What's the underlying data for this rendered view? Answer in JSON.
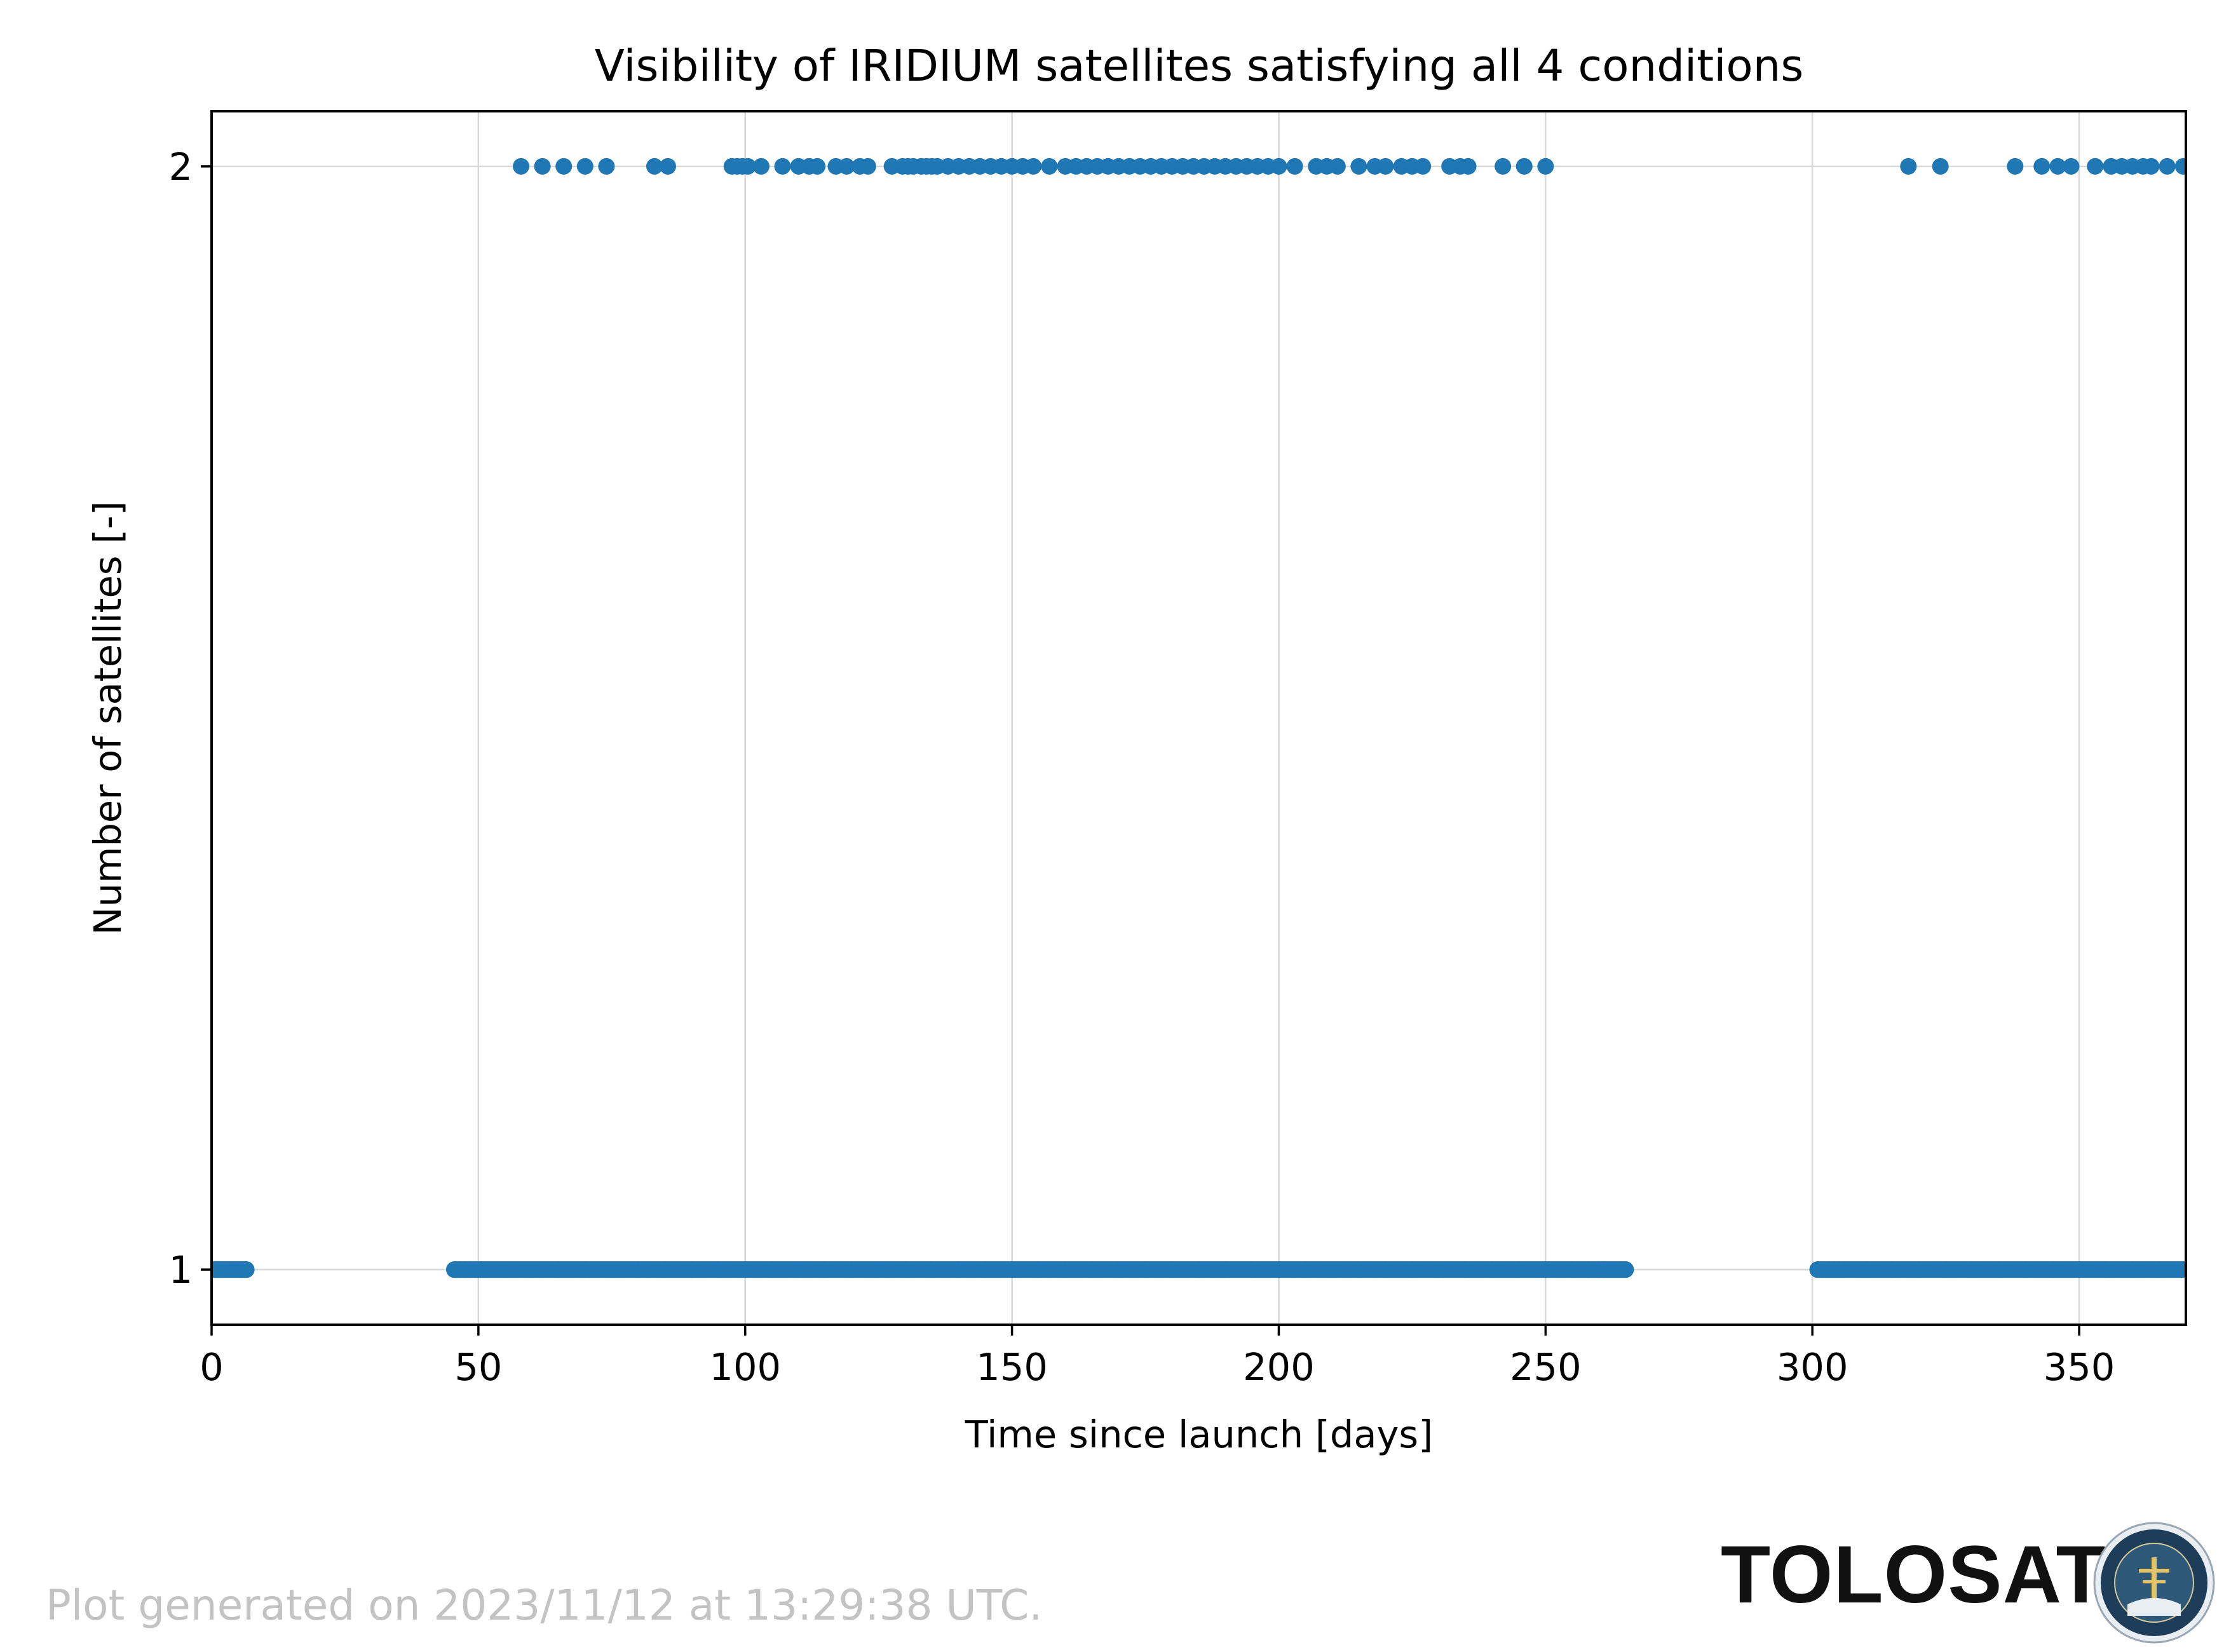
{
  "chart_data": {
    "type": "scatter",
    "title": "Visibility of IRIDIUM satellites satisfying all 4 conditions",
    "xlabel": "Time since launch [days]",
    "ylabel": "Number of satellites [-]",
    "xlim": [
      0,
      370
    ],
    "ylim": [
      0.95,
      2.05
    ],
    "xticks": [
      0,
      50,
      100,
      150,
      200,
      250,
      300,
      350
    ],
    "yticks": [
      1,
      2
    ],
    "grid": true,
    "marker_color": "#1f77b4",
    "series": [
      {
        "values_y1": {
          "x": [
            0,
            0.5,
            1,
            1.5,
            2,
            2.5,
            3,
            3.5,
            4,
            4.5,
            5,
            5.5,
            6,
            6.5,
            45.5,
            46.5,
            47.5,
            48.5,
            49.5,
            50.5,
            55,
            60,
            65,
            70,
            75,
            80,
            85,
            90,
            95,
            100,
            105,
            110,
            115,
            120,
            125,
            130,
            135,
            140,
            145,
            150,
            155,
            160,
            165,
            170,
            175,
            180,
            185,
            190,
            195,
            200,
            205,
            210,
            215,
            220,
            225,
            230,
            235,
            240,
            245,
            250,
            255,
            258,
            260,
            261,
            262,
            263,
            264,
            265,
            301,
            302,
            303,
            304,
            305,
            306,
            310,
            315,
            320,
            325,
            330,
            335,
            340,
            345,
            350,
            355,
            360,
            365,
            370
          ]
        },
        "values_y2": {
          "x": [
            58,
            62,
            66,
            70,
            74,
            83,
            85.5,
            97.5,
            98.5,
            99.5,
            100.5,
            103,
            107,
            110,
            112,
            113.5,
            117,
            119,
            121.5,
            123,
            127.5,
            129.5,
            130.5,
            131.5,
            133,
            134,
            135,
            136,
            138,
            140,
            142,
            144,
            146,
            148,
            150,
            152,
            154,
            157,
            160,
            162,
            164,
            166,
            168,
            170,
            172,
            174,
            176,
            178,
            180,
            182,
            184,
            186,
            188,
            190,
            192,
            194,
            196,
            198,
            200,
            203,
            207,
            209,
            211,
            215,
            218,
            220,
            223,
            225,
            227,
            232,
            234,
            235.5,
            242,
            246,
            250,
            318,
            324,
            338,
            343,
            346,
            348.5,
            353,
            356,
            358,
            360,
            362,
            363.5,
            366.5,
            369.5
          ]
        }
      }
    ]
  },
  "footer": {
    "generated_text": "Plot generated on 2023/11/12 at 13:29:38 UTC."
  },
  "brand": {
    "name": "TOLOSAT",
    "logo_ring_text": "ASTRE · CC · SUPAERO · TOLOSAT"
  }
}
